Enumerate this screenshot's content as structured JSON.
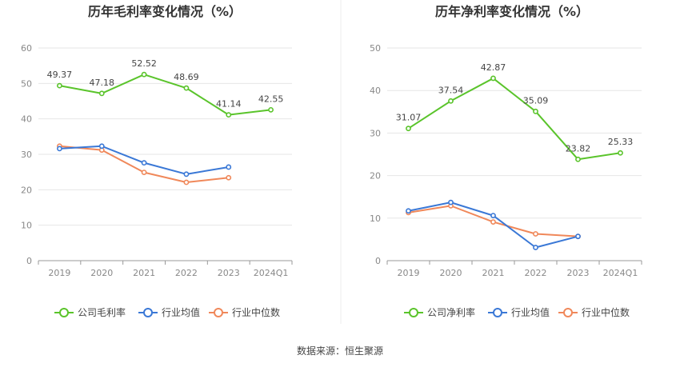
{
  "source": "数据来源：恒生聚源",
  "colors": {
    "company": "#5ac42b",
    "industry_avg": "#3a78d6",
    "industry_median": "#f0885a",
    "grid": "#e6e6e6",
    "axis": "#999999",
    "divider": "#eeeeee"
  },
  "chart_data": [
    {
      "type": "line",
      "title": "历年毛利率变化情况（%）",
      "categories": [
        "2019",
        "2020",
        "2021",
        "2022",
        "2023",
        "2024Q1"
      ],
      "yticks": [
        "0",
        "10",
        "20",
        "30",
        "40",
        "50",
        "60"
      ],
      "ylim": [
        0,
        60
      ],
      "series": [
        {
          "name": "公司毛利率",
          "key": "company",
          "values": [
            49.37,
            47.18,
            52.52,
            48.69,
            41.14,
            42.55
          ],
          "labels": [
            "49.37",
            "47.18",
            "52.52",
            "48.69",
            "41.14",
            "42.55"
          ]
        },
        {
          "name": "行业均值",
          "key": "industry_avg",
          "values": [
            31.6,
            32.3,
            27.6,
            24.4,
            26.4,
            null
          ]
        },
        {
          "name": "行业中位数",
          "key": "industry_median",
          "values": [
            32.3,
            31.2,
            24.9,
            22.1,
            23.4,
            null
          ]
        }
      ]
    },
    {
      "type": "line",
      "title": "历年净利率变化情况（%）",
      "categories": [
        "2019",
        "2020",
        "2021",
        "2022",
        "2023",
        "2024Q1"
      ],
      "yticks": [
        "0",
        "10",
        "20",
        "30",
        "40",
        "50"
      ],
      "ylim": [
        0,
        50
      ],
      "series": [
        {
          "name": "公司净利率",
          "key": "company",
          "values": [
            31.07,
            37.54,
            42.87,
            35.09,
            23.82,
            25.33
          ],
          "labels": [
            "31.07",
            "37.54",
            "42.87",
            "35.09",
            "23.82",
            "25.33"
          ]
        },
        {
          "name": "行业均值",
          "key": "industry_avg",
          "values": [
            11.7,
            13.7,
            10.6,
            3.1,
            5.7,
            null
          ]
        },
        {
          "name": "行业中位数",
          "key": "industry_median",
          "values": [
            11.3,
            12.9,
            9.1,
            6.3,
            5.7,
            null
          ]
        }
      ]
    }
  ]
}
